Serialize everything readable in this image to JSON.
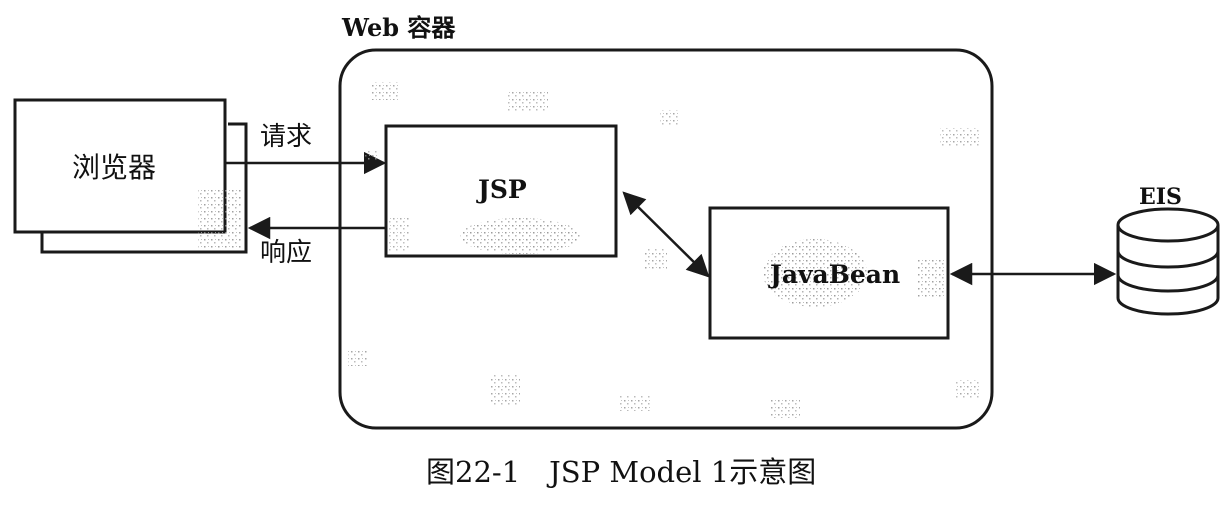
{
  "web_container": {
    "label": "Web 容器"
  },
  "browser": {
    "label": "浏览器"
  },
  "jsp": {
    "label": "JSP"
  },
  "javabean": {
    "label": "JavaBean"
  },
  "eis": {
    "label": "EIS"
  },
  "arrows": {
    "request_label": "请求",
    "response_label": "响应"
  },
  "caption": "图22-1　JSP Model 1示意图",
  "colors": {
    "stroke": "#1a1a1a",
    "background": "#ffffff",
    "speckle": "#9a9a9a"
  }
}
